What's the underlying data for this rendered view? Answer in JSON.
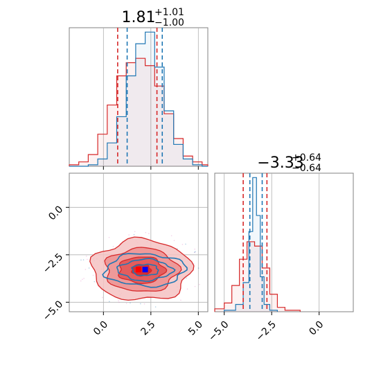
{
  "chart_data": [
    {
      "type": "histogram",
      "panel": "marginal-param1",
      "title_value": "1.81",
      "title_upper": "+1.01",
      "title_lower": "−1.00",
      "xlim": [
        -1.8,
        5.5
      ],
      "x_ticks": [
        0.0,
        2.5,
        5.0
      ],
      "grid": true,
      "series": [
        {
          "color": "#d62728",
          "quantile_lines": [
            0.75,
            2.82
          ],
          "bin_edges": [
            -1.8,
            -1.3,
            -0.8,
            -0.3,
            0.2,
            0.7,
            1.2,
            1.7,
            2.2,
            2.7,
            3.2,
            3.7,
            4.2,
            4.7,
            5.2,
            5.5
          ],
          "heights": [
            0.01,
            0.03,
            0.08,
            0.22,
            0.42,
            0.62,
            0.71,
            0.74,
            0.69,
            0.55,
            0.36,
            0.19,
            0.07,
            0.03,
            0.01
          ]
        },
        {
          "color": "#1f77b4",
          "quantile_lines": [
            1.25,
            3.1
          ],
          "bin_edges": [
            -1.8,
            -1.3,
            -0.8,
            -0.3,
            0.2,
            0.7,
            1.2,
            1.7,
            2.2,
            2.7,
            3.2,
            3.7,
            4.2,
            4.7,
            5.2,
            5.5
          ],
          "heights": [
            0.0,
            0.0,
            0.01,
            0.05,
            0.16,
            0.34,
            0.62,
            0.84,
            0.92,
            0.68,
            0.38,
            0.15,
            0.05,
            0.01,
            0.0
          ]
        }
      ]
    },
    {
      "type": "histogram",
      "panel": "marginal-param2",
      "title_value": "−3.33",
      "title_upper": "+0.64",
      "title_lower": "−0.64",
      "xlim": [
        -5.5,
        1.8
      ],
      "x_ticks": [
        -5.0,
        -2.5,
        0.0
      ],
      "grid": true,
      "series": [
        {
          "color": "#d62728",
          "quantile_lines": [
            -4.0,
            -2.75
          ],
          "bin_edges": [
            -5.5,
            -5.0,
            -4.6,
            -4.2,
            -3.8,
            -3.4,
            -3.0,
            -2.6,
            -2.2,
            -1.8,
            -1.0
          ],
          "heights": [
            0.02,
            0.06,
            0.18,
            0.36,
            0.48,
            0.45,
            0.3,
            0.12,
            0.03,
            0.01
          ]
        },
        {
          "color": "#1f77b4",
          "quantile_lines": [
            -3.65,
            -3.0
          ],
          "bin_edges": [
            -5.0,
            -4.4,
            -4.0,
            -3.7,
            -3.5,
            -3.3,
            -3.1,
            -2.9,
            -2.6,
            -2.2
          ],
          "heights": [
            0.01,
            0.05,
            0.2,
            0.55,
            0.92,
            0.66,
            0.24,
            0.05,
            0.01
          ]
        }
      ]
    },
    {
      "type": "contour",
      "panel": "joint",
      "xlim": [
        -1.8,
        5.5
      ],
      "ylim": [
        -5.5,
        1.8
      ],
      "x_ticks": [
        0.0,
        2.5,
        5.0
      ],
      "y_ticks": [
        0.0,
        -2.5,
        -5.0
      ],
      "grid": true,
      "series": [
        {
          "color": "#d62728",
          "center": [
            2.0,
            -3.3
          ],
          "levels": [
            {
              "rx": 2.6,
              "ry": 1.6
            },
            {
              "rx": 1.9,
              "ry": 1.15
            },
            {
              "rx": 1.2,
              "ry": 0.7
            },
            {
              "rx": 0.5,
              "ry": 0.3
            }
          ]
        },
        {
          "color": "#1f77b4",
          "center": [
            2.2,
            -3.3
          ],
          "levels": [
            {
              "rx": 2.1,
              "ry": 0.85
            },
            {
              "rx": 1.4,
              "ry": 0.55
            },
            {
              "rx": 0.7,
              "ry": 0.3
            }
          ]
        }
      ],
      "markers": [
        {
          "color": "#ff0000",
          "x": 1.85,
          "y": -3.28
        },
        {
          "color": "#0000ff",
          "x": 2.2,
          "y": -3.28
        }
      ]
    }
  ]
}
